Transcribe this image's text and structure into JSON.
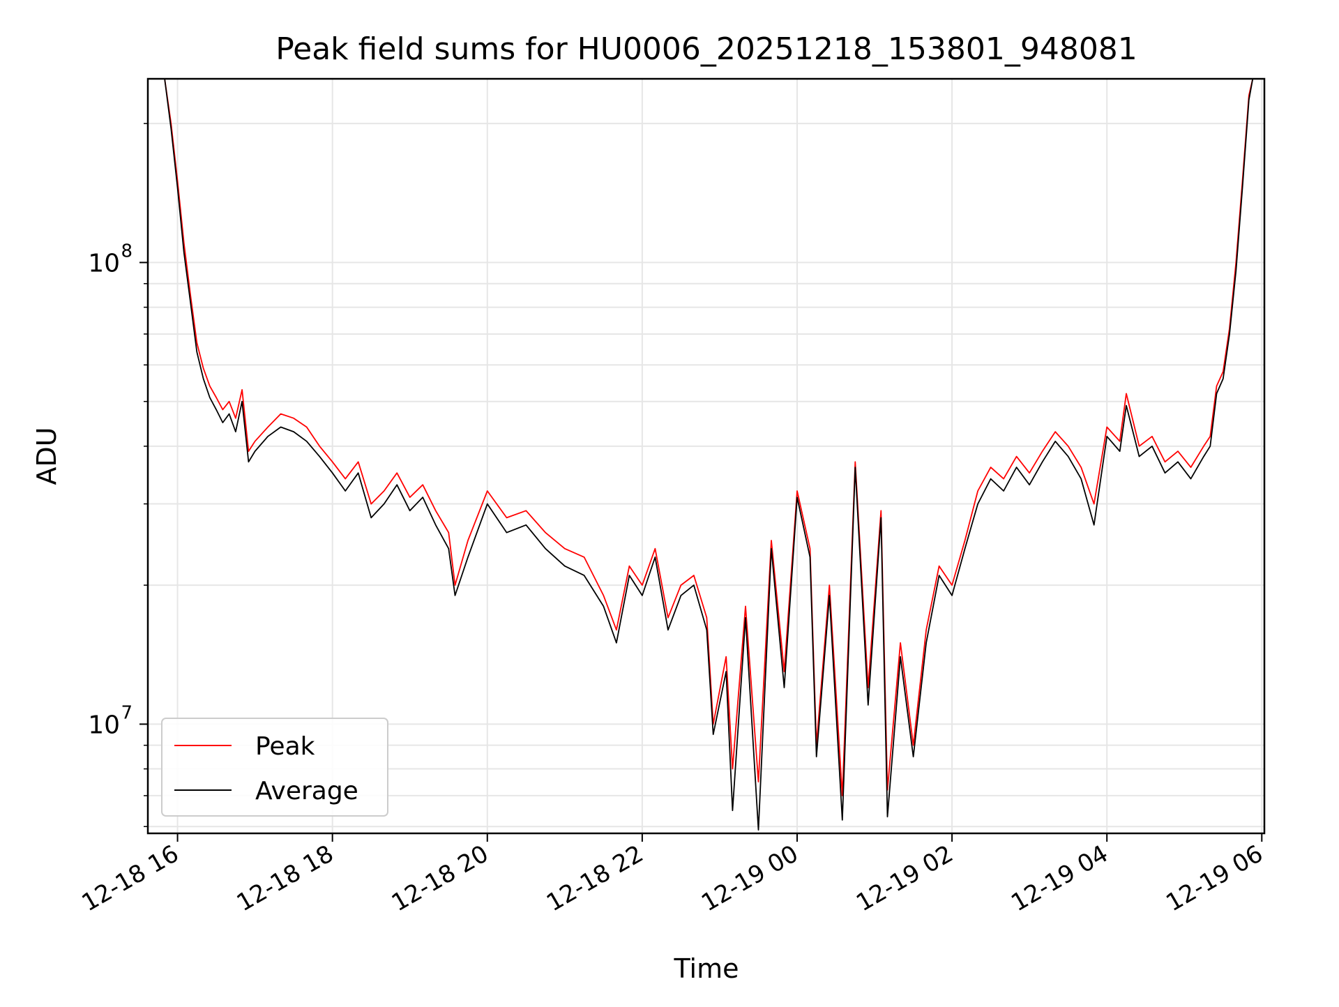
{
  "chart_data": {
    "type": "line",
    "title": "Peak field sums for HU0006_20251218_153801_948081",
    "xlabel": "Time",
    "ylabel": "ADU",
    "x_scale": "time",
    "y_scale": "log",
    "xlim": [
      "2025-12-18 15:37",
      "2025-12-19 06:02"
    ],
    "ylim": [
      5800000,
      250000000
    ],
    "x_ticks": [
      {
        "value": "2025-12-18 16:00",
        "label": "12-18 16"
      },
      {
        "value": "2025-12-18 18:00",
        "label": "12-18 18"
      },
      {
        "value": "2025-12-18 20:00",
        "label": "12-18 20"
      },
      {
        "value": "2025-12-18 22:00",
        "label": "12-18 22"
      },
      {
        "value": "2025-12-19 00:00",
        "label": "12-19 00"
      },
      {
        "value": "2025-12-19 02:00",
        "label": "12-19 02"
      },
      {
        "value": "2025-12-19 04:00",
        "label": "12-19 04"
      },
      {
        "value": "2025-12-19 06:00",
        "label": "12-19 06"
      }
    ],
    "y_ticks": [
      {
        "value": 10000000,
        "base": "10",
        "exp": "7"
      },
      {
        "value": 100000000,
        "base": "10",
        "exp": "8"
      }
    ],
    "grid": true,
    "legend_position": "lower-left",
    "series": [
      {
        "name": "Peak",
        "color": "#ff0000",
        "points": [
          [
            "2025-12-18 15:50",
            260000000
          ],
          [
            "2025-12-18 15:55",
            200000000
          ],
          [
            "2025-12-18 16:00",
            150000000
          ],
          [
            "2025-12-18 16:05",
            110000000
          ],
          [
            "2025-12-18 16:10",
            85000000
          ],
          [
            "2025-12-18 16:15",
            67000000
          ],
          [
            "2025-12-18 16:20",
            59000000
          ],
          [
            "2025-12-18 16:25",
            54000000
          ],
          [
            "2025-12-18 16:30",
            51000000
          ],
          [
            "2025-12-18 16:35",
            48000000
          ],
          [
            "2025-12-18 16:40",
            50000000
          ],
          [
            "2025-12-18 16:45",
            46000000
          ],
          [
            "2025-12-18 16:50",
            53000000
          ],
          [
            "2025-12-18 16:55",
            39000000
          ],
          [
            "2025-12-18 17:00",
            41000000
          ],
          [
            "2025-12-18 17:10",
            44000000
          ],
          [
            "2025-12-18 17:20",
            47000000
          ],
          [
            "2025-12-18 17:30",
            46000000
          ],
          [
            "2025-12-18 17:40",
            44000000
          ],
          [
            "2025-12-18 17:50",
            40000000
          ],
          [
            "2025-12-18 18:00",
            37000000
          ],
          [
            "2025-12-18 18:10",
            34000000
          ],
          [
            "2025-12-18 18:20",
            37000000
          ],
          [
            "2025-12-18 18:30",
            30000000
          ],
          [
            "2025-12-18 18:40",
            32000000
          ],
          [
            "2025-12-18 18:50",
            35000000
          ],
          [
            "2025-12-18 19:00",
            31000000
          ],
          [
            "2025-12-18 19:10",
            33000000
          ],
          [
            "2025-12-18 19:20",
            29000000
          ],
          [
            "2025-12-18 19:30",
            26000000
          ],
          [
            "2025-12-18 19:35",
            20000000
          ],
          [
            "2025-12-18 19:45",
            25000000
          ],
          [
            "2025-12-18 20:00",
            32000000
          ],
          [
            "2025-12-18 20:15",
            28000000
          ],
          [
            "2025-12-18 20:30",
            29000000
          ],
          [
            "2025-12-18 20:45",
            26000000
          ],
          [
            "2025-12-18 21:00",
            24000000
          ],
          [
            "2025-12-18 21:15",
            23000000
          ],
          [
            "2025-12-18 21:30",
            19000000
          ],
          [
            "2025-12-18 21:40",
            16000000
          ],
          [
            "2025-12-18 21:50",
            22000000
          ],
          [
            "2025-12-18 22:00",
            20000000
          ],
          [
            "2025-12-18 22:10",
            24000000
          ],
          [
            "2025-12-18 22:20",
            17000000
          ],
          [
            "2025-12-18 22:30",
            20000000
          ],
          [
            "2025-12-18 22:40",
            21000000
          ],
          [
            "2025-12-18 22:50",
            17000000
          ],
          [
            "2025-12-18 22:55",
            10000000
          ],
          [
            "2025-12-18 23:05",
            14000000
          ],
          [
            "2025-12-18 23:10",
            8000000
          ],
          [
            "2025-12-18 23:20",
            18000000
          ],
          [
            "2025-12-18 23:30",
            7500000
          ],
          [
            "2025-12-18 23:40",
            25000000
          ],
          [
            "2025-12-18 23:50",
            13000000
          ],
          [
            "2025-12-19 00:00",
            32000000
          ],
          [
            "2025-12-19 00:10",
            24000000
          ],
          [
            "2025-12-19 00:15",
            9000000
          ],
          [
            "2025-12-19 00:25",
            20000000
          ],
          [
            "2025-12-19 00:35",
            7000000
          ],
          [
            "2025-12-19 00:45",
            37000000
          ],
          [
            "2025-12-19 00:55",
            12000000
          ],
          [
            "2025-12-19 01:05",
            29000000
          ],
          [
            "2025-12-19 01:10",
            7200000
          ],
          [
            "2025-12-19 01:20",
            15000000
          ],
          [
            "2025-12-19 01:30",
            9000000
          ],
          [
            "2025-12-19 01:40",
            16000000
          ],
          [
            "2025-12-19 01:50",
            22000000
          ],
          [
            "2025-12-19 02:00",
            20000000
          ],
          [
            "2025-12-19 02:10",
            25000000
          ],
          [
            "2025-12-19 02:20",
            32000000
          ],
          [
            "2025-12-19 02:30",
            36000000
          ],
          [
            "2025-12-19 02:40",
            34000000
          ],
          [
            "2025-12-19 02:50",
            38000000
          ],
          [
            "2025-12-19 03:00",
            35000000
          ],
          [
            "2025-12-19 03:10",
            39000000
          ],
          [
            "2025-12-19 03:20",
            43000000
          ],
          [
            "2025-12-19 03:30",
            40000000
          ],
          [
            "2025-12-19 03:40",
            36000000
          ],
          [
            "2025-12-19 03:50",
            30000000
          ],
          [
            "2025-12-19 04:00",
            44000000
          ],
          [
            "2025-12-19 04:10",
            41000000
          ],
          [
            "2025-12-19 04:15",
            52000000
          ],
          [
            "2025-12-19 04:25",
            40000000
          ],
          [
            "2025-12-19 04:35",
            42000000
          ],
          [
            "2025-12-19 04:45",
            37000000
          ],
          [
            "2025-12-19 04:55",
            39000000
          ],
          [
            "2025-12-19 05:05",
            36000000
          ],
          [
            "2025-12-19 05:15",
            40000000
          ],
          [
            "2025-12-19 05:20",
            42000000
          ],
          [
            "2025-12-19 05:25",
            54000000
          ],
          [
            "2025-12-19 05:30",
            58000000
          ],
          [
            "2025-12-19 05:35",
            72000000
          ],
          [
            "2025-12-19 05:40",
            100000000
          ],
          [
            "2025-12-19 05:45",
            150000000
          ],
          [
            "2025-12-19 05:50",
            230000000
          ],
          [
            "2025-12-19 05:53",
            270000000
          ]
        ]
      },
      {
        "name": "Average",
        "color": "#000000",
        "points": [
          [
            "2025-12-18 15:50",
            255000000
          ],
          [
            "2025-12-18 15:55",
            195000000
          ],
          [
            "2025-12-18 16:00",
            145000000
          ],
          [
            "2025-12-18 16:05",
            105000000
          ],
          [
            "2025-12-18 16:10",
            82000000
          ],
          [
            "2025-12-18 16:15",
            64000000
          ],
          [
            "2025-12-18 16:20",
            56000000
          ],
          [
            "2025-12-18 16:25",
            51000000
          ],
          [
            "2025-12-18 16:30",
            48000000
          ],
          [
            "2025-12-18 16:35",
            45000000
          ],
          [
            "2025-12-18 16:40",
            47000000
          ],
          [
            "2025-12-18 16:45",
            43000000
          ],
          [
            "2025-12-18 16:50",
            50000000
          ],
          [
            "2025-12-18 16:55",
            37000000
          ],
          [
            "2025-12-18 17:00",
            39000000
          ],
          [
            "2025-12-18 17:10",
            42000000
          ],
          [
            "2025-12-18 17:20",
            44000000
          ],
          [
            "2025-12-18 17:30",
            43000000
          ],
          [
            "2025-12-18 17:40",
            41000000
          ],
          [
            "2025-12-18 17:50",
            38000000
          ],
          [
            "2025-12-18 18:00",
            35000000
          ],
          [
            "2025-12-18 18:10",
            32000000
          ],
          [
            "2025-12-18 18:20",
            35000000
          ],
          [
            "2025-12-18 18:30",
            28000000
          ],
          [
            "2025-12-18 18:40",
            30000000
          ],
          [
            "2025-12-18 18:50",
            33000000
          ],
          [
            "2025-12-18 19:00",
            29000000
          ],
          [
            "2025-12-18 19:10",
            31000000
          ],
          [
            "2025-12-18 19:20",
            27000000
          ],
          [
            "2025-12-18 19:30",
            24000000
          ],
          [
            "2025-12-18 19:35",
            19000000
          ],
          [
            "2025-12-18 19:45",
            23000000
          ],
          [
            "2025-12-18 20:00",
            30000000
          ],
          [
            "2025-12-18 20:15",
            26000000
          ],
          [
            "2025-12-18 20:30",
            27000000
          ],
          [
            "2025-12-18 20:45",
            24000000
          ],
          [
            "2025-12-18 21:00",
            22000000
          ],
          [
            "2025-12-18 21:15",
            21000000
          ],
          [
            "2025-12-18 21:30",
            18000000
          ],
          [
            "2025-12-18 21:40",
            15000000
          ],
          [
            "2025-12-18 21:50",
            21000000
          ],
          [
            "2025-12-18 22:00",
            19000000
          ],
          [
            "2025-12-18 22:10",
            23000000
          ],
          [
            "2025-12-18 22:20",
            16000000
          ],
          [
            "2025-12-18 22:30",
            19000000
          ],
          [
            "2025-12-18 22:40",
            20000000
          ],
          [
            "2025-12-18 22:50",
            16000000
          ],
          [
            "2025-12-18 22:55",
            9500000
          ],
          [
            "2025-12-18 23:05",
            13000000
          ],
          [
            "2025-12-18 23:10",
            6500000
          ],
          [
            "2025-12-18 23:20",
            17000000
          ],
          [
            "2025-12-18 23:30",
            5900000
          ],
          [
            "2025-12-18 23:40",
            24000000
          ],
          [
            "2025-12-18 23:50",
            12000000
          ],
          [
            "2025-12-19 00:00",
            31000000
          ],
          [
            "2025-12-19 00:10",
            23000000
          ],
          [
            "2025-12-19 00:15",
            8500000
          ],
          [
            "2025-12-19 00:25",
            19000000
          ],
          [
            "2025-12-19 00:35",
            6200000
          ],
          [
            "2025-12-19 00:45",
            36000000
          ],
          [
            "2025-12-19 00:55",
            11000000
          ],
          [
            "2025-12-19 01:05",
            28000000
          ],
          [
            "2025-12-19 01:10",
            6300000
          ],
          [
            "2025-12-19 01:20",
            14000000
          ],
          [
            "2025-12-19 01:30",
            8500000
          ],
          [
            "2025-12-19 01:40",
            15000000
          ],
          [
            "2025-12-19 01:50",
            21000000
          ],
          [
            "2025-12-19 02:00",
            19000000
          ],
          [
            "2025-12-19 02:10",
            24000000
          ],
          [
            "2025-12-19 02:20",
            30000000
          ],
          [
            "2025-12-19 02:30",
            34000000
          ],
          [
            "2025-12-19 02:40",
            32000000
          ],
          [
            "2025-12-19 02:50",
            36000000
          ],
          [
            "2025-12-19 03:00",
            33000000
          ],
          [
            "2025-12-19 03:10",
            37000000
          ],
          [
            "2025-12-19 03:20",
            41000000
          ],
          [
            "2025-12-19 03:30",
            38000000
          ],
          [
            "2025-12-19 03:40",
            34000000
          ],
          [
            "2025-12-19 03:50",
            27000000
          ],
          [
            "2025-12-19 04:00",
            42000000
          ],
          [
            "2025-12-19 04:10",
            39000000
          ],
          [
            "2025-12-19 04:15",
            49000000
          ],
          [
            "2025-12-19 04:25",
            38000000
          ],
          [
            "2025-12-19 04:35",
            40000000
          ],
          [
            "2025-12-19 04:45",
            35000000
          ],
          [
            "2025-12-19 04:55",
            37000000
          ],
          [
            "2025-12-19 05:05",
            34000000
          ],
          [
            "2025-12-19 05:15",
            38000000
          ],
          [
            "2025-12-19 05:20",
            40000000
          ],
          [
            "2025-12-19 05:25",
            52000000
          ],
          [
            "2025-12-19 05:30",
            56000000
          ],
          [
            "2025-12-19 05:35",
            70000000
          ],
          [
            "2025-12-19 05:40",
            96000000
          ],
          [
            "2025-12-19 05:45",
            145000000
          ],
          [
            "2025-12-19 05:50",
            225000000
          ],
          [
            "2025-12-19 05:53",
            265000000
          ]
        ]
      }
    ]
  }
}
